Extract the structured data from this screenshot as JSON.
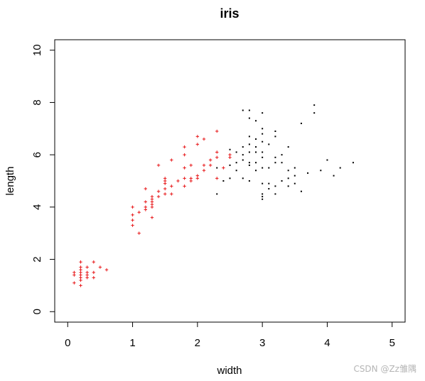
{
  "chart_data": {
    "type": "scatter",
    "title": "iris",
    "xlabel": "width",
    "ylabel": "length",
    "xlim": [
      -0.2,
      5.2
    ],
    "ylim": [
      -0.4,
      10.4
    ],
    "xticks": [
      0,
      1,
      2,
      3,
      4,
      5
    ],
    "yticks": [
      0,
      2,
      4,
      6,
      8,
      10
    ],
    "grid": false,
    "series": [
      {
        "marker": "+",
        "color": "#e8191b",
        "points": [
          [
            0.1,
            1.4
          ],
          [
            0.1,
            1.5
          ],
          [
            0.1,
            1.1
          ],
          [
            0.2,
            1.4
          ],
          [
            0.2,
            1.5
          ],
          [
            0.2,
            1.3
          ],
          [
            0.2,
            1.6
          ],
          [
            0.2,
            1.2
          ],
          [
            0.2,
            1.7
          ],
          [
            0.2,
            1.9
          ],
          [
            0.2,
            1.0
          ],
          [
            0.3,
            1.4
          ],
          [
            0.3,
            1.3
          ],
          [
            0.3,
            1.5
          ],
          [
            0.3,
            1.7
          ],
          [
            0.4,
            1.5
          ],
          [
            0.4,
            1.9
          ],
          [
            0.4,
            1.3
          ],
          [
            0.5,
            1.7
          ],
          [
            0.6,
            1.6
          ],
          [
            1.0,
            3.3
          ],
          [
            1.0,
            3.5
          ],
          [
            1.0,
            4.0
          ],
          [
            1.0,
            3.7
          ],
          [
            1.1,
            3.8
          ],
          [
            1.1,
            3.0
          ],
          [
            1.2,
            3.9
          ],
          [
            1.2,
            4.2
          ],
          [
            1.2,
            4.0
          ],
          [
            1.2,
            4.7
          ],
          [
            1.3,
            4.0
          ],
          [
            1.3,
            4.4
          ],
          [
            1.3,
            4.1
          ],
          [
            1.3,
            3.6
          ],
          [
            1.3,
            4.2
          ],
          [
            1.3,
            4.3
          ],
          [
            1.4,
            4.4
          ],
          [
            1.4,
            4.6
          ],
          [
            1.4,
            5.6
          ],
          [
            1.5,
            4.5
          ],
          [
            1.5,
            4.9
          ],
          [
            1.5,
            5.0
          ],
          [
            1.5,
            4.7
          ],
          [
            1.5,
            5.1
          ],
          [
            1.6,
            4.5
          ],
          [
            1.6,
            5.8
          ],
          [
            1.6,
            4.8
          ],
          [
            1.7,
            5.0
          ],
          [
            1.8,
            4.8
          ],
          [
            1.8,
            5.1
          ],
          [
            1.8,
            5.5
          ],
          [
            1.8,
            6.0
          ],
          [
            1.8,
            6.3
          ],
          [
            1.9,
            5.0
          ],
          [
            1.9,
            5.1
          ],
          [
            1.9,
            5.6
          ],
          [
            2.0,
            5.1
          ],
          [
            2.0,
            5.2
          ],
          [
            2.0,
            6.4
          ],
          [
            2.0,
            6.7
          ],
          [
            2.1,
            5.4
          ],
          [
            2.1,
            5.6
          ],
          [
            2.1,
            6.6
          ],
          [
            2.2,
            5.6
          ],
          [
            2.2,
            5.8
          ],
          [
            2.3,
            5.1
          ],
          [
            2.3,
            5.9
          ],
          [
            2.3,
            6.1
          ],
          [
            2.3,
            6.9
          ],
          [
            2.4,
            5.5
          ],
          [
            2.5,
            5.9
          ],
          [
            2.5,
            6.0
          ]
        ]
      },
      {
        "marker": "dot",
        "color": "#000000",
        "points": [
          [
            2.3,
            4.5
          ],
          [
            2.3,
            5.5
          ],
          [
            2.4,
            5.0
          ],
          [
            2.5,
            5.1
          ],
          [
            2.5,
            5.6
          ],
          [
            2.5,
            6.2
          ],
          [
            2.6,
            5.4
          ],
          [
            2.6,
            6.1
          ],
          [
            2.6,
            5.7
          ],
          [
            2.7,
            5.1
          ],
          [
            2.7,
            5.8
          ],
          [
            2.7,
            6.3
          ],
          [
            2.7,
            7.7
          ],
          [
            2.7,
            6.0
          ],
          [
            2.8,
            5.7
          ],
          [
            2.8,
            6.1
          ],
          [
            2.8,
            7.4
          ],
          [
            2.8,
            5.6
          ],
          [
            2.8,
            6.7
          ],
          [
            2.8,
            7.7
          ],
          [
            2.8,
            6.4
          ],
          [
            2.8,
            5.0
          ],
          [
            2.9,
            6.3
          ],
          [
            2.9,
            6.6
          ],
          [
            2.9,
            5.4
          ],
          [
            2.9,
            6.1
          ],
          [
            2.9,
            5.7
          ],
          [
            2.9,
            7.3
          ],
          [
            3.0,
            4.4
          ],
          [
            3.0,
            4.5
          ],
          [
            3.0,
            4.9
          ],
          [
            3.0,
            5.5
          ],
          [
            3.0,
            5.9
          ],
          [
            3.0,
            6.5
          ],
          [
            3.0,
            7.0
          ],
          [
            3.0,
            7.6
          ],
          [
            3.0,
            6.8
          ],
          [
            3.0,
            6.1
          ],
          [
            3.0,
            4.3
          ],
          [
            3.1,
            4.9
          ],
          [
            3.1,
            4.7
          ],
          [
            3.1,
            5.5
          ],
          [
            3.1,
            6.4
          ],
          [
            3.2,
            4.5
          ],
          [
            3.2,
            6.9
          ],
          [
            3.2,
            6.7
          ],
          [
            3.2,
            5.7
          ],
          [
            3.2,
            4.8
          ],
          [
            3.2,
            5.9
          ],
          [
            3.3,
            5.0
          ],
          [
            3.3,
            6.0
          ],
          [
            3.3,
            5.7
          ],
          [
            3.4,
            4.8
          ],
          [
            3.4,
            5.4
          ],
          [
            3.4,
            6.3
          ],
          [
            3.4,
            5.1
          ],
          [
            3.5,
            5.2
          ],
          [
            3.5,
            4.9
          ],
          [
            3.5,
            5.5
          ],
          [
            3.6,
            4.6
          ],
          [
            3.6,
            7.2
          ],
          [
            3.7,
            5.3
          ],
          [
            3.8,
            7.9
          ],
          [
            3.8,
            7.6
          ],
          [
            3.9,
            5.4
          ],
          [
            4.0,
            5.8
          ],
          [
            4.1,
            5.2
          ],
          [
            4.2,
            5.5
          ],
          [
            4.4,
            5.7
          ]
        ]
      }
    ]
  },
  "watermark": "CSDN @Zz雏隅"
}
